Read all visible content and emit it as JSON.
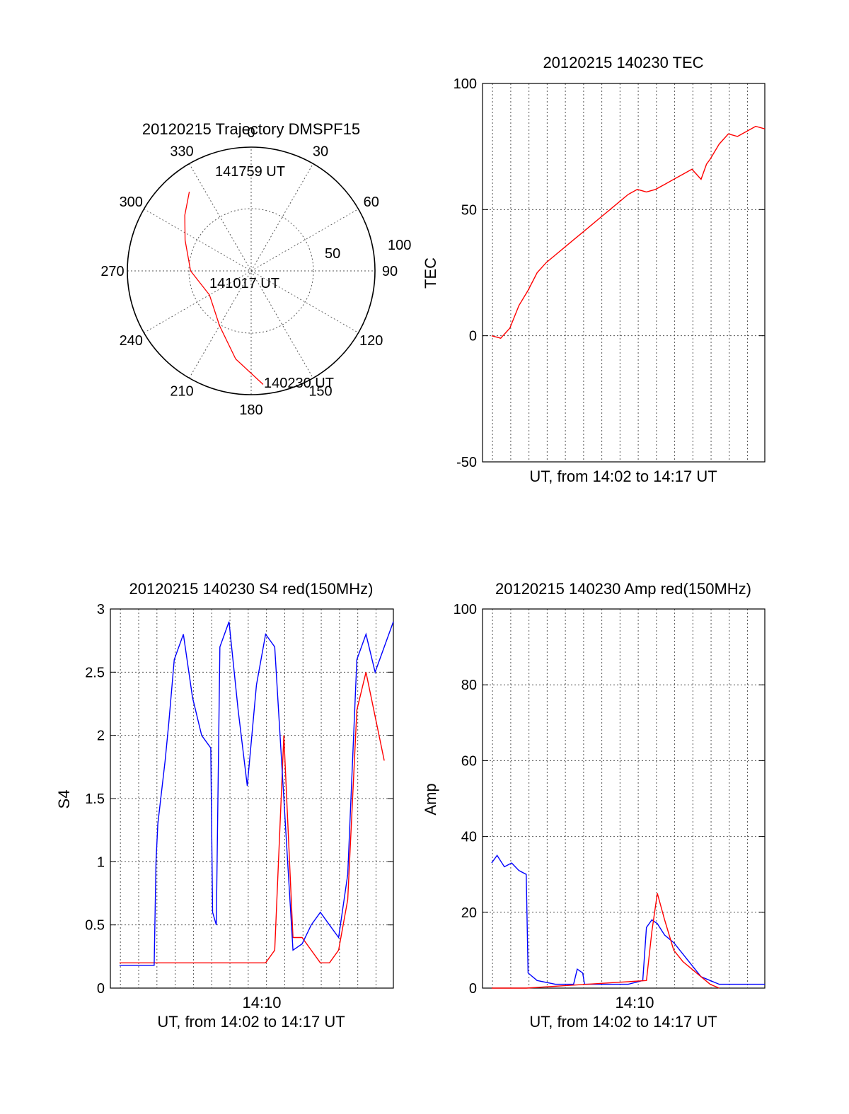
{
  "chart_data": [
    {
      "type": "polar",
      "title": "20120215 Trajectory DMSPF15",
      "azimuth_labels": [
        "0",
        "30",
        "60",
        "90",
        "120",
        "150",
        "180",
        "210",
        "240",
        "270",
        "300",
        "330"
      ],
      "radial_labels": [
        "50",
        "100"
      ],
      "elevation_rings": [
        50,
        0
      ],
      "track": {
        "color": "#ff0000",
        "azimuth_deg": [
          322,
          310,
          295,
          270,
          240,
          210,
          190,
          174
        ],
        "elevation_deg": [
          17,
          27,
          37,
          46,
          55,
          44,
          25,
          7
        ]
      },
      "annotations": [
        "141759 UT",
        "141017 UT",
        "140230 UT"
      ]
    },
    {
      "type": "line",
      "title": "20120215 140230 TEC",
      "xlabel": "UT, from 14:02 to 14:17 UT",
      "ylabel": "TEC",
      "ylim": [
        -50,
        100
      ],
      "yticks": [
        "100",
        "50",
        "0",
        "-50"
      ],
      "xlim_min": [
        0,
        15.5
      ],
      "vertical_grid_min": [
        0.5,
        1.5,
        2.5,
        3.5,
        4.5,
        5.5,
        6.5,
        7.5,
        8.5,
        9.5,
        10.5,
        11.5,
        12.5,
        13.5,
        14.5
      ],
      "series": [
        {
          "color": "#ff0000",
          "x_min": [
            0.5,
            1.0,
            1.5,
            2.0,
            2.5,
            3.0,
            3.5,
            4.0,
            4.5,
            5.0,
            5.5,
            6.0,
            6.5,
            7.0,
            7.5,
            8.0,
            8.5,
            9.0,
            9.5,
            10.0,
            10.5,
            11.0,
            11.5,
            12.0,
            12.3,
            12.5,
            13.0,
            13.5,
            14.0,
            14.5,
            15.0,
            15.5
          ],
          "y": [
            0,
            -1,
            3,
            12,
            18,
            25,
            29,
            32,
            35,
            38,
            41,
            44,
            47,
            50,
            53,
            56,
            58,
            57,
            58,
            60,
            62,
            64,
            66,
            62,
            68,
            70,
            76,
            80,
            79,
            81,
            83,
            82
          ]
        }
      ]
    },
    {
      "type": "line",
      "title": "20120215 140230 S4 red(150MHz)",
      "xlabel": "UT, from 14:02 to 14:17 UT",
      "ylabel": "S4",
      "ylim": [
        0,
        3
      ],
      "yticks": [
        "3",
        "2.5",
        "2",
        "1.5",
        "1",
        "0.5",
        "0"
      ],
      "xtick": "14:10",
      "series": [
        {
          "name_color": "blue",
          "color": "#0000ff",
          "x_min": [
            0.5,
            1.5,
            2.4,
            2.5,
            2.6,
            3.0,
            3.2,
            3.5,
            4.0,
            4.5,
            5.0,
            5.5,
            5.6,
            5.8,
            6.0,
            6.5,
            7.0,
            7.5,
            8.0,
            8.5,
            9.0,
            9.5,
            10.0,
            10.5,
            11.0,
            11.5,
            12.0,
            12.5,
            13.0,
            13.5,
            14.0,
            14.5,
            15.0,
            15.5
          ],
          "y": [
            0.18,
            0.18,
            0.18,
            1.0,
            1.3,
            1.8,
            2.1,
            2.6,
            2.8,
            2.3,
            2.0,
            1.9,
            0.6,
            0.5,
            2.7,
            2.9,
            2.2,
            1.6,
            2.4,
            2.8,
            2.7,
            1.5,
            0.3,
            0.35,
            0.5,
            0.6,
            0.5,
            0.4,
            0.9,
            2.6,
            2.8,
            2.5,
            2.7,
            2.9
          ]
        },
        {
          "name_color": "red",
          "color": "#ff0000",
          "x_min": [
            0.5,
            3.5,
            5.0,
            8.5,
            9.0,
            9.5,
            10.0,
            10.5,
            11.0,
            11.5,
            12.0,
            12.5,
            13.0,
            13.5,
            14.0,
            15.0
          ],
          "y": [
            0.2,
            0.2,
            0.2,
            0.2,
            0.3,
            2.0,
            0.4,
            0.4,
            0.3,
            0.2,
            0.2,
            0.3,
            0.7,
            2.2,
            2.5,
            1.8
          ]
        }
      ]
    },
    {
      "type": "line",
      "title": "20120215 140230 Amp red(150MHz)",
      "xlabel": "UT, from 14:02 to 14:17 UT",
      "ylabel": "Amp",
      "ylim": [
        0,
        100
      ],
      "yticks": [
        "100",
        "80",
        "60",
        "40",
        "20",
        "0"
      ],
      "xtick": "14:10",
      "series": [
        {
          "name_color": "blue",
          "color": "#0000ff",
          "x_min": [
            0.5,
            0.8,
            1.2,
            1.6,
            2.0,
            2.4,
            2.5,
            3.0,
            4.0,
            5.0,
            5.2,
            5.5,
            5.6,
            6.0,
            7.0,
            8.0,
            8.8,
            9.0,
            9.3,
            9.6,
            10.0,
            10.5,
            11.0,
            11.5,
            12.0,
            12.5,
            13.0,
            14.0,
            15.0,
            15.5
          ],
          "y": [
            33,
            35,
            32,
            33,
            31,
            30,
            4,
            2,
            1,
            1,
            5,
            4,
            1,
            1,
            1,
            1,
            2,
            16,
            18,
            17,
            14,
            12,
            9,
            6,
            3,
            2,
            1,
            1,
            1,
            1
          ]
        },
        {
          "name_color": "red",
          "color": "#ff0000",
          "x_min": [
            0.5,
            2.4,
            9.0,
            9.3,
            9.6,
            10.0,
            10.5,
            11.0,
            11.5,
            12.0,
            12.5,
            13.0
          ],
          "y": [
            0,
            0,
            2,
            15,
            25,
            18,
            10,
            7,
            5,
            3,
            1,
            0
          ]
        }
      ]
    }
  ]
}
